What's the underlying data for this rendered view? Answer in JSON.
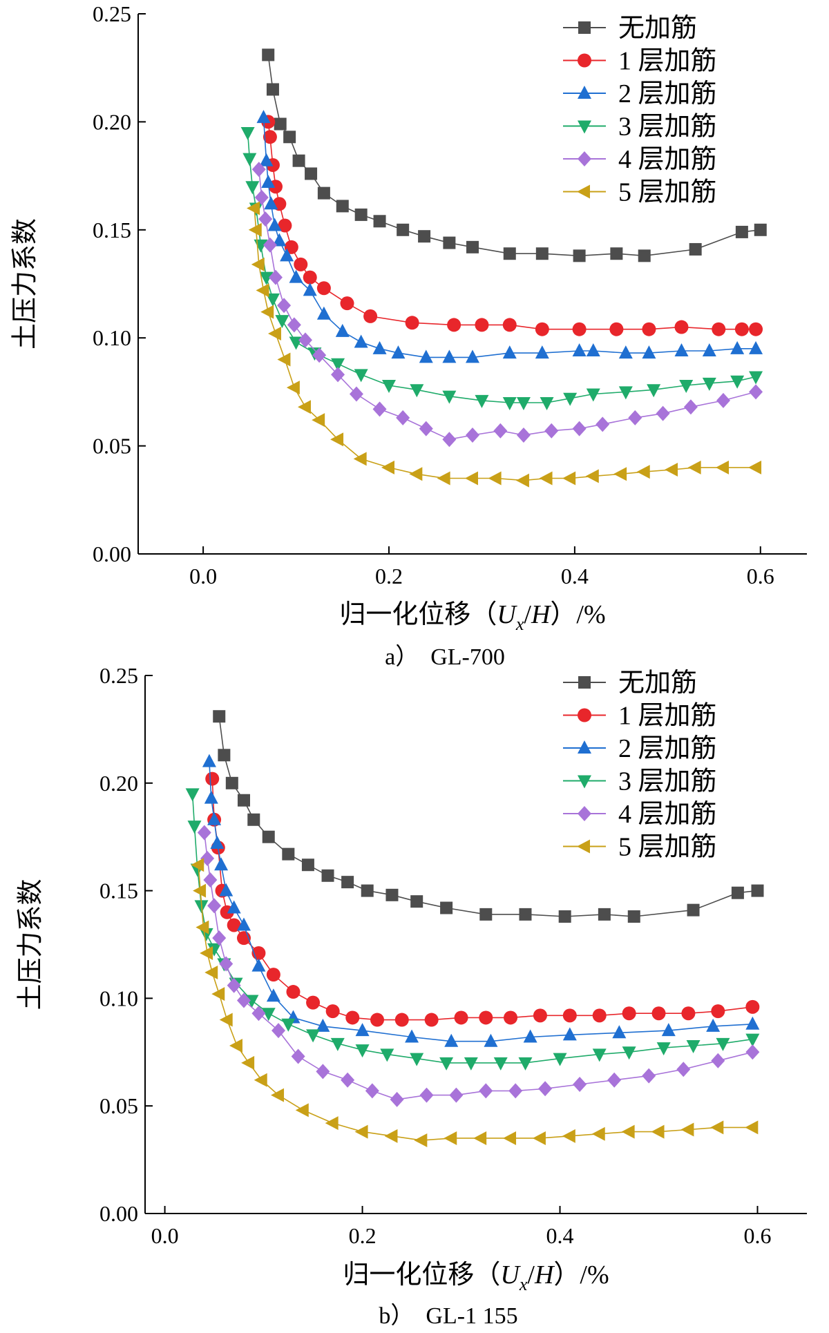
{
  "figure": {
    "y_axis_label": "土压力系数",
    "x_axis_label_prefix": "归一化位移",
    "x_axis_label_vars": [
      "U",
      "x",
      "H"
    ],
    "x_axis_label_suffix": "%",
    "panels": [
      "a）　GL-700",
      "b）　GL-1 155"
    ]
  },
  "colors": {
    "无加筋": "#4d4d4d",
    "1 层加筋": "#e8262b",
    "2 层加筋": "#1f6fd1",
    "3 层加筋": "#1fab6a",
    "4 层加筋": "#a873d9",
    "5 层加筋": "#c9a017"
  },
  "chart_data": [
    {
      "type": "line",
      "panel_label": "a）　GL-700",
      "xlabel": "归一化位移（Ux/H）/%",
      "ylabel": "土压力系数",
      "xlim": [
        -0.07,
        0.65
      ],
      "ylim": [
        0,
        0.25
      ],
      "xticks": [
        "0.0",
        "0.2",
        "0.4",
        "0.6"
      ],
      "xtick_values": [
        0,
        0.2,
        0.4,
        0.6
      ],
      "yticks": [
        "0.00",
        "0.05",
        "0.10",
        "0.15",
        "0.20",
        "0.25"
      ],
      "ytick_values": [
        0,
        0.05,
        0.1,
        0.15,
        0.2,
        0.25
      ],
      "legend_position": "top-right",
      "series": [
        {
          "name": "无加筋",
          "marker": "square",
          "x": [
            0.07,
            0.075,
            0.083,
            0.093,
            0.103,
            0.116,
            0.13,
            0.15,
            0.17,
            0.19,
            0.215,
            0.238,
            0.265,
            0.29,
            0.33,
            0.365,
            0.405,
            0.445,
            0.475,
            0.53,
            0.58,
            0.6
          ],
          "y": [
            0.231,
            0.215,
            0.199,
            0.193,
            0.182,
            0.176,
            0.167,
            0.161,
            0.157,
            0.154,
            0.15,
            0.147,
            0.144,
            0.142,
            0.139,
            0.139,
            0.138,
            0.139,
            0.138,
            0.141,
            0.149,
            0.15
          ]
        },
        {
          "name": "1 层加筋",
          "marker": "circle",
          "x": [
            0.07,
            0.072,
            0.075,
            0.078,
            0.082,
            0.088,
            0.095,
            0.105,
            0.115,
            0.13,
            0.155,
            0.18,
            0.225,
            0.27,
            0.3,
            0.33,
            0.365,
            0.405,
            0.445,
            0.48,
            0.515,
            0.555,
            0.58,
            0.595
          ],
          "y": [
            0.2,
            0.193,
            0.18,
            0.17,
            0.162,
            0.152,
            0.142,
            0.134,
            0.128,
            0.123,
            0.116,
            0.11,
            0.107,
            0.106,
            0.106,
            0.106,
            0.104,
            0.104,
            0.104,
            0.104,
            0.105,
            0.104,
            0.104,
            0.104
          ]
        },
        {
          "name": "2 层加筋",
          "marker": "triangle-up",
          "x": [
            0.065,
            0.068,
            0.07,
            0.073,
            0.077,
            0.082,
            0.09,
            0.1,
            0.115,
            0.13,
            0.15,
            0.17,
            0.19,
            0.21,
            0.24,
            0.265,
            0.29,
            0.33,
            0.365,
            0.405,
            0.42,
            0.455,
            0.48,
            0.515,
            0.545,
            0.575,
            0.595
          ],
          "y": [
            0.202,
            0.182,
            0.172,
            0.162,
            0.152,
            0.145,
            0.138,
            0.128,
            0.122,
            0.111,
            0.103,
            0.098,
            0.095,
            0.093,
            0.091,
            0.091,
            0.091,
            0.093,
            0.093,
            0.094,
            0.094,
            0.093,
            0.093,
            0.094,
            0.094,
            0.095,
            0.095
          ]
        },
        {
          "name": "3 层加筋",
          "marker": "triangle-down",
          "x": [
            0.048,
            0.05,
            0.053,
            0.057,
            0.062,
            0.068,
            0.075,
            0.085,
            0.1,
            0.12,
            0.145,
            0.17,
            0.2,
            0.23,
            0.265,
            0.3,
            0.33,
            0.345,
            0.37,
            0.395,
            0.42,
            0.455,
            0.485,
            0.52,
            0.545,
            0.575,
            0.595
          ],
          "y": [
            0.195,
            0.183,
            0.17,
            0.16,
            0.143,
            0.128,
            0.118,
            0.108,
            0.098,
            0.093,
            0.088,
            0.083,
            0.078,
            0.076,
            0.073,
            0.071,
            0.07,
            0.07,
            0.07,
            0.072,
            0.074,
            0.075,
            0.076,
            0.078,
            0.079,
            0.08,
            0.082
          ]
        },
        {
          "name": "4 层加筋",
          "marker": "diamond",
          "x": [
            0.06,
            0.063,
            0.067,
            0.072,
            0.078,
            0.087,
            0.098,
            0.11,
            0.125,
            0.145,
            0.165,
            0.19,
            0.215,
            0.24,
            0.265,
            0.29,
            0.32,
            0.345,
            0.375,
            0.405,
            0.43,
            0.465,
            0.495,
            0.525,
            0.56,
            0.595
          ],
          "y": [
            0.178,
            0.165,
            0.155,
            0.143,
            0.128,
            0.115,
            0.106,
            0.099,
            0.092,
            0.083,
            0.074,
            0.067,
            0.063,
            0.058,
            0.053,
            0.055,
            0.057,
            0.055,
            0.057,
            0.058,
            0.06,
            0.063,
            0.065,
            0.068,
            0.071,
            0.075
          ]
        },
        {
          "name": "5 层加筋",
          "marker": "triangle-left",
          "x": [
            0.055,
            0.057,
            0.06,
            0.065,
            0.07,
            0.078,
            0.088,
            0.098,
            0.11,
            0.125,
            0.145,
            0.17,
            0.2,
            0.23,
            0.26,
            0.29,
            0.315,
            0.345,
            0.37,
            0.395,
            0.42,
            0.45,
            0.475,
            0.505,
            0.53,
            0.56,
            0.595
          ],
          "y": [
            0.16,
            0.15,
            0.134,
            0.122,
            0.112,
            0.102,
            0.09,
            0.077,
            0.068,
            0.062,
            0.053,
            0.044,
            0.04,
            0.037,
            0.035,
            0.035,
            0.035,
            0.034,
            0.035,
            0.035,
            0.036,
            0.037,
            0.038,
            0.039,
            0.04,
            0.04,
            0.04
          ]
        }
      ]
    },
    {
      "type": "line",
      "panel_label": "b）　GL-1 155",
      "xlabel": "归一化位移（Ux/H）/%",
      "ylabel": "土压力系数",
      "xlim": [
        -0.02,
        0.65
      ],
      "ylim": [
        0,
        0.25
      ],
      "xticks": [
        "0.0",
        "0.2",
        "0.4",
        "0.6"
      ],
      "xtick_values": [
        0,
        0.2,
        0.4,
        0.6
      ],
      "yticks": [
        "0.00",
        "0.05",
        "0.10",
        "0.15",
        "0.20",
        "0.25"
      ],
      "ytick_values": [
        0,
        0.05,
        0.1,
        0.15,
        0.2,
        0.25
      ],
      "legend_position": "top-right",
      "series": [
        {
          "name": "无加筋",
          "marker": "square",
          "x": [
            0.055,
            0.06,
            0.068,
            0.08,
            0.09,
            0.105,
            0.125,
            0.145,
            0.165,
            0.185,
            0.205,
            0.23,
            0.255,
            0.285,
            0.325,
            0.365,
            0.405,
            0.445,
            0.475,
            0.535,
            0.58,
            0.6
          ],
          "y": [
            0.231,
            0.213,
            0.2,
            0.192,
            0.183,
            0.175,
            0.167,
            0.162,
            0.157,
            0.154,
            0.15,
            0.148,
            0.145,
            0.142,
            0.139,
            0.139,
            0.138,
            0.139,
            0.138,
            0.141,
            0.149,
            0.15
          ]
        },
        {
          "name": "1 层加筋",
          "marker": "circle",
          "x": [
            0.048,
            0.05,
            0.054,
            0.058,
            0.063,
            0.07,
            0.08,
            0.095,
            0.11,
            0.13,
            0.15,
            0.17,
            0.19,
            0.215,
            0.24,
            0.27,
            0.3,
            0.325,
            0.35,
            0.38,
            0.41,
            0.44,
            0.47,
            0.5,
            0.53,
            0.56,
            0.595
          ],
          "y": [
            0.202,
            0.183,
            0.17,
            0.15,
            0.14,
            0.134,
            0.128,
            0.121,
            0.111,
            0.103,
            0.098,
            0.094,
            0.091,
            0.09,
            0.09,
            0.09,
            0.091,
            0.091,
            0.091,
            0.092,
            0.092,
            0.092,
            0.093,
            0.093,
            0.093,
            0.094,
            0.096
          ]
        },
        {
          "name": "2 层加筋",
          "marker": "triangle-up",
          "x": [
            0.045,
            0.047,
            0.05,
            0.053,
            0.057,
            0.062,
            0.07,
            0.08,
            0.095,
            0.11,
            0.13,
            0.16,
            0.2,
            0.25,
            0.29,
            0.33,
            0.37,
            0.41,
            0.46,
            0.51,
            0.555,
            0.595
          ],
          "y": [
            0.21,
            0.193,
            0.183,
            0.172,
            0.162,
            0.15,
            0.142,
            0.134,
            0.115,
            0.101,
            0.091,
            0.087,
            0.085,
            0.082,
            0.08,
            0.08,
            0.082,
            0.083,
            0.084,
            0.085,
            0.087,
            0.088
          ]
        },
        {
          "name": "3 层加筋",
          "marker": "triangle-down",
          "x": [
            0.028,
            0.03,
            0.033,
            0.037,
            0.042,
            0.05,
            0.06,
            0.072,
            0.088,
            0.105,
            0.125,
            0.15,
            0.175,
            0.2,
            0.225,
            0.255,
            0.285,
            0.31,
            0.34,
            0.365,
            0.4,
            0.44,
            0.47,
            0.505,
            0.535,
            0.565,
            0.595
          ],
          "y": [
            0.195,
            0.18,
            0.16,
            0.143,
            0.13,
            0.123,
            0.116,
            0.107,
            0.099,
            0.093,
            0.088,
            0.083,
            0.079,
            0.076,
            0.074,
            0.072,
            0.07,
            0.07,
            0.07,
            0.07,
            0.072,
            0.074,
            0.075,
            0.077,
            0.078,
            0.079,
            0.081
          ]
        },
        {
          "name": "4 层加筋",
          "marker": "diamond",
          "x": [
            0.04,
            0.043,
            0.046,
            0.05,
            0.055,
            0.062,
            0.07,
            0.08,
            0.095,
            0.115,
            0.135,
            0.16,
            0.185,
            0.21,
            0.235,
            0.265,
            0.295,
            0.325,
            0.355,
            0.385,
            0.42,
            0.455,
            0.49,
            0.525,
            0.56,
            0.595
          ],
          "y": [
            0.177,
            0.165,
            0.155,
            0.143,
            0.128,
            0.116,
            0.106,
            0.099,
            0.093,
            0.085,
            0.073,
            0.066,
            0.062,
            0.057,
            0.053,
            0.055,
            0.055,
            0.057,
            0.057,
            0.058,
            0.06,
            0.062,
            0.064,
            0.067,
            0.071,
            0.075
          ]
        },
        {
          "name": "5 层加筋",
          "marker": "triangle-left",
          "x": [
            0.034,
            0.036,
            0.039,
            0.043,
            0.048,
            0.055,
            0.063,
            0.073,
            0.085,
            0.098,
            0.115,
            0.14,
            0.17,
            0.2,
            0.23,
            0.26,
            0.29,
            0.32,
            0.35,
            0.38,
            0.41,
            0.44,
            0.47,
            0.5,
            0.53,
            0.56,
            0.595
          ],
          "y": [
            0.162,
            0.15,
            0.133,
            0.121,
            0.112,
            0.102,
            0.09,
            0.078,
            0.07,
            0.062,
            0.055,
            0.048,
            0.042,
            0.038,
            0.036,
            0.034,
            0.035,
            0.035,
            0.035,
            0.035,
            0.036,
            0.037,
            0.038,
            0.038,
            0.039,
            0.04,
            0.04
          ]
        }
      ]
    }
  ]
}
